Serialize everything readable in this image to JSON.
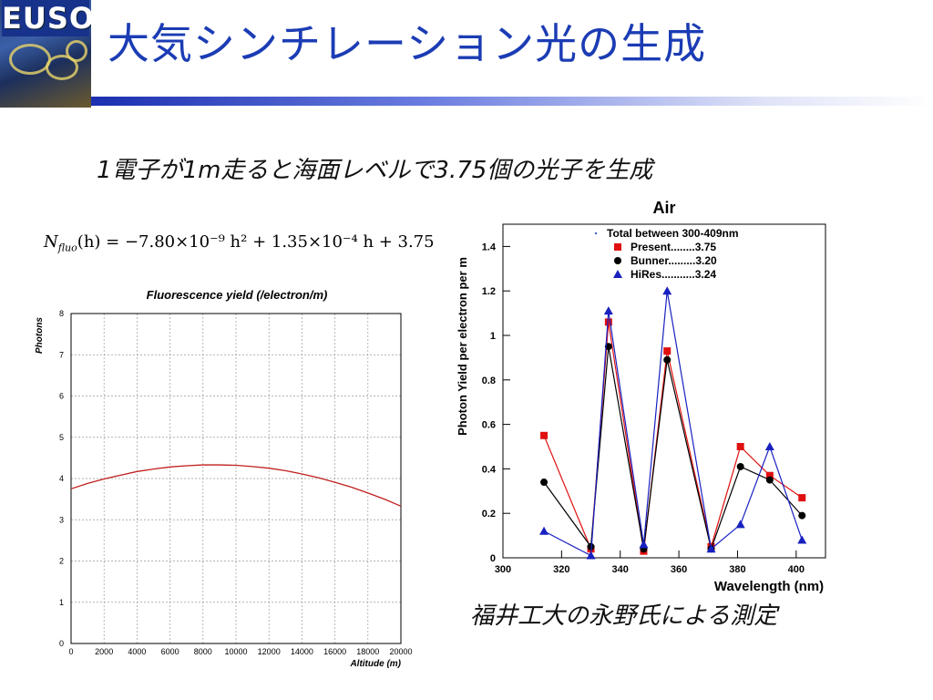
{
  "logo": {
    "text": "EUSO"
  },
  "title": "大気シンチレーション光の生成",
  "subtitle": "1電子が1m走ると海面レベルで3.75個の光子を生成",
  "formula": {
    "lhs": "N",
    "sub": "fluo",
    "rhs": "(h) = −7.80×10⁻⁹ h² + 1.35×10⁻⁴ h + 3.75"
  },
  "caption": "福井工大の永野氏による測定",
  "colors": {
    "title": "#1b3cb4",
    "curve": "#c0201e",
    "present": "#e01010",
    "bunner": "#000000",
    "hires": "#1820c0"
  },
  "chart_data": [
    {
      "type": "line",
      "title": "Fluorescence yield (/electron/m)",
      "xlabel": "Altitude (m)",
      "ylabel": "Photons",
      "xlim": [
        0,
        20000
      ],
      "ylim": [
        0,
        8
      ],
      "xticks": [
        "0",
        "2000",
        "4000",
        "6000",
        "8000",
        "10000",
        "12000",
        "14000",
        "16000",
        "18000",
        "20000"
      ],
      "yticks": [
        "0",
        "1",
        "2",
        "3",
        "4",
        "5",
        "6",
        "7",
        "8"
      ],
      "grid": true,
      "x": [
        0,
        1000,
        2000,
        3000,
        4000,
        5000,
        6000,
        7000,
        8000,
        8654,
        9000,
        10000,
        11000,
        12000,
        13000,
        14000,
        15000,
        16000,
        17000,
        18000,
        19000,
        20000
      ],
      "series": [
        {
          "values": [
            3.75,
            3.88,
            3.99,
            4.08,
            4.17,
            4.23,
            4.28,
            4.31,
            4.33,
            4.33,
            4.33,
            4.32,
            4.29,
            4.25,
            4.19,
            4.11,
            4.02,
            3.91,
            3.79,
            3.65,
            3.5,
            3.33
          ]
        }
      ]
    },
    {
      "type": "line",
      "title": "Air",
      "xlabel": "Wavelength (nm)",
      "ylabel": "Photon Yield per electron per m",
      "xlim": [
        300,
        410
      ],
      "ylim": [
        0,
        1.5
      ],
      "xticks": [
        "300",
        "320",
        "340",
        "360",
        "380",
        "400"
      ],
      "yticks": [
        "0",
        "0.2",
        "0.4",
        "0.6",
        "0.8",
        "1",
        "1.2",
        "1.4"
      ],
      "grid": false,
      "legend": {
        "position": "top",
        "header": "Total between 300-409nm",
        "entries": [
          "Present........3.75",
          "Bunner.........3.20",
          "HiRes...........3.24"
        ]
      },
      "x": [
        314,
        330,
        336,
        348,
        356,
        371,
        381,
        391,
        402
      ],
      "series": [
        {
          "name": "Present",
          "marker": "square",
          "values": [
            0.55,
            0.04,
            1.06,
            0.03,
            0.93,
            0.05,
            0.5,
            0.37,
            0.27
          ]
        },
        {
          "name": "Bunner",
          "marker": "circle",
          "values": [
            0.34,
            0.05,
            0.95,
            0.04,
            0.89,
            0.04,
            0.41,
            0.35,
            0.19
          ]
        },
        {
          "name": "HiRes",
          "marker": "triangle",
          "values": [
            0.12,
            0.01,
            1.11,
            0.06,
            1.2,
            0.04,
            0.15,
            0.5,
            0.08
          ]
        }
      ]
    }
  ]
}
